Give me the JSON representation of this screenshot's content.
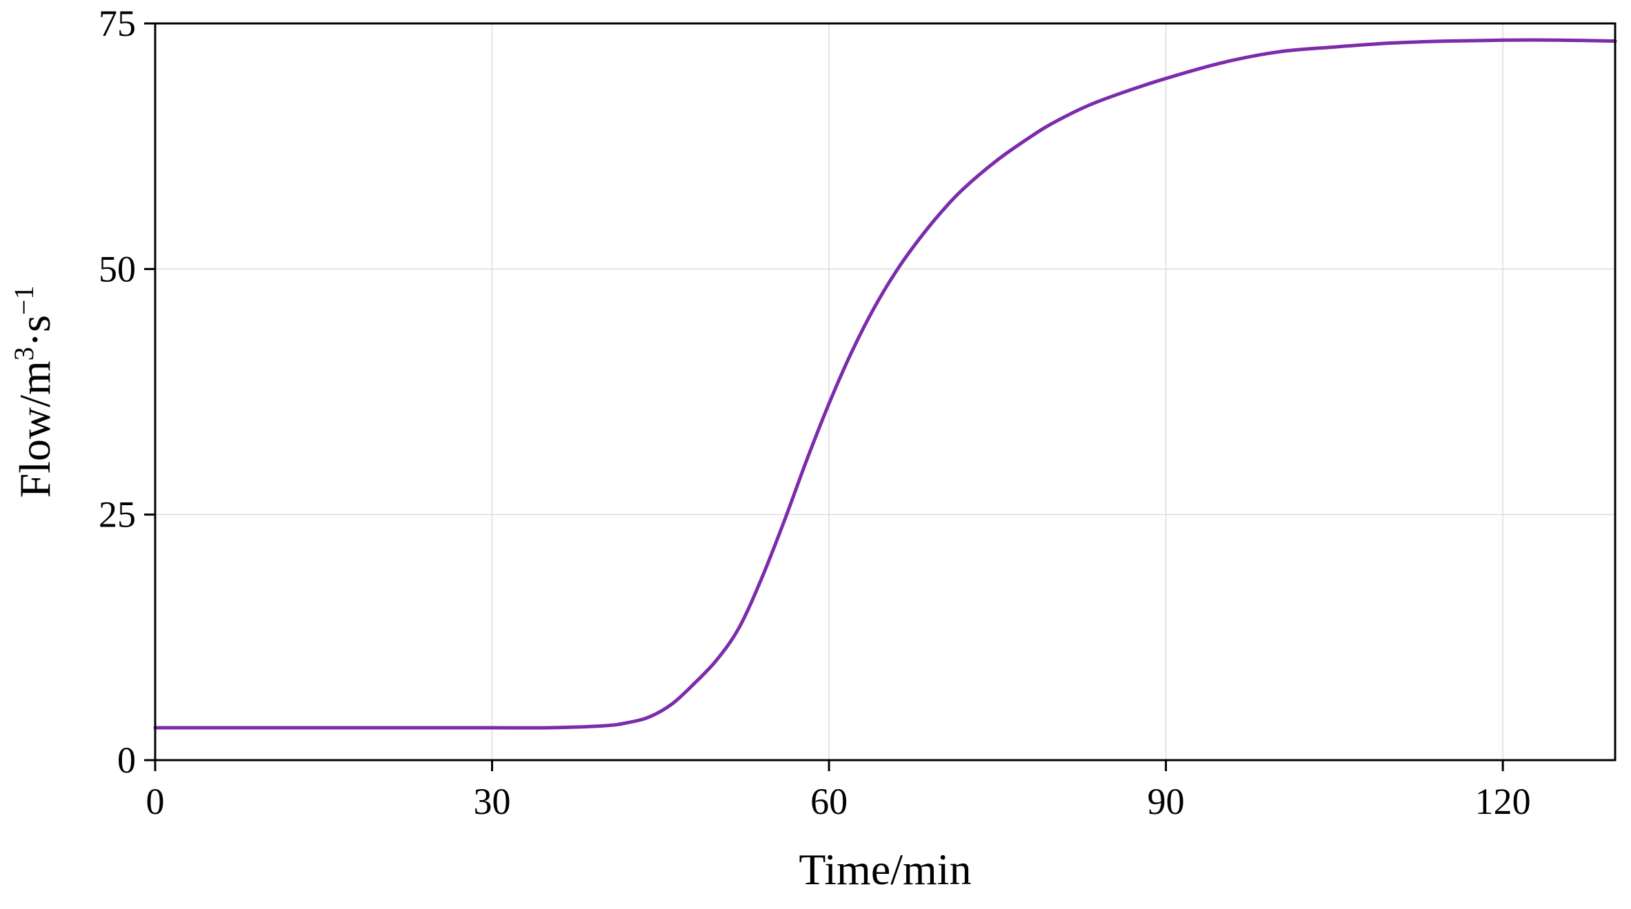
{
  "chart_data": {
    "type": "line",
    "title": "",
    "xlabel": "Time/min",
    "ylabel": {
      "base": "Flow/m",
      "sup1": "3",
      "middle": "·s",
      "sup2": "−1"
    },
    "xlim": [
      0,
      130
    ],
    "ylim": [
      0,
      75
    ],
    "xticks": [
      0,
      30,
      60,
      90,
      120
    ],
    "yticks": [
      0,
      25,
      50,
      75
    ],
    "xtick_labels": [
      "0",
      "30",
      "60",
      "90",
      "120"
    ],
    "ytick_labels": [
      "0",
      "25",
      "50",
      "75"
    ],
    "grid": true,
    "legend": "none",
    "series": [
      {
        "color": "#7b2bab",
        "x": [
          0,
          10,
          20,
          30,
          35,
          40,
          42,
          44,
          46,
          48,
          50,
          52,
          54,
          56,
          58,
          60,
          62,
          64,
          66,
          68,
          70,
          72,
          75,
          78,
          80,
          83,
          86,
          90,
          95,
          100,
          105,
          110,
          115,
          120,
          125,
          130
        ],
        "y": [
          3.3,
          3.3,
          3.3,
          3.3,
          3.3,
          3.5,
          3.8,
          4.4,
          5.7,
          7.8,
          10.2,
          13.5,
          18.5,
          24.3,
          30.5,
          36.3,
          41.5,
          46.0,
          49.8,
          53.0,
          55.8,
          58.2,
          61.1,
          63.5,
          64.9,
          66.6,
          67.9,
          69.4,
          71.0,
          72.1,
          72.6,
          73.0,
          73.2,
          73.3,
          73.3,
          73.2
        ]
      }
    ]
  }
}
